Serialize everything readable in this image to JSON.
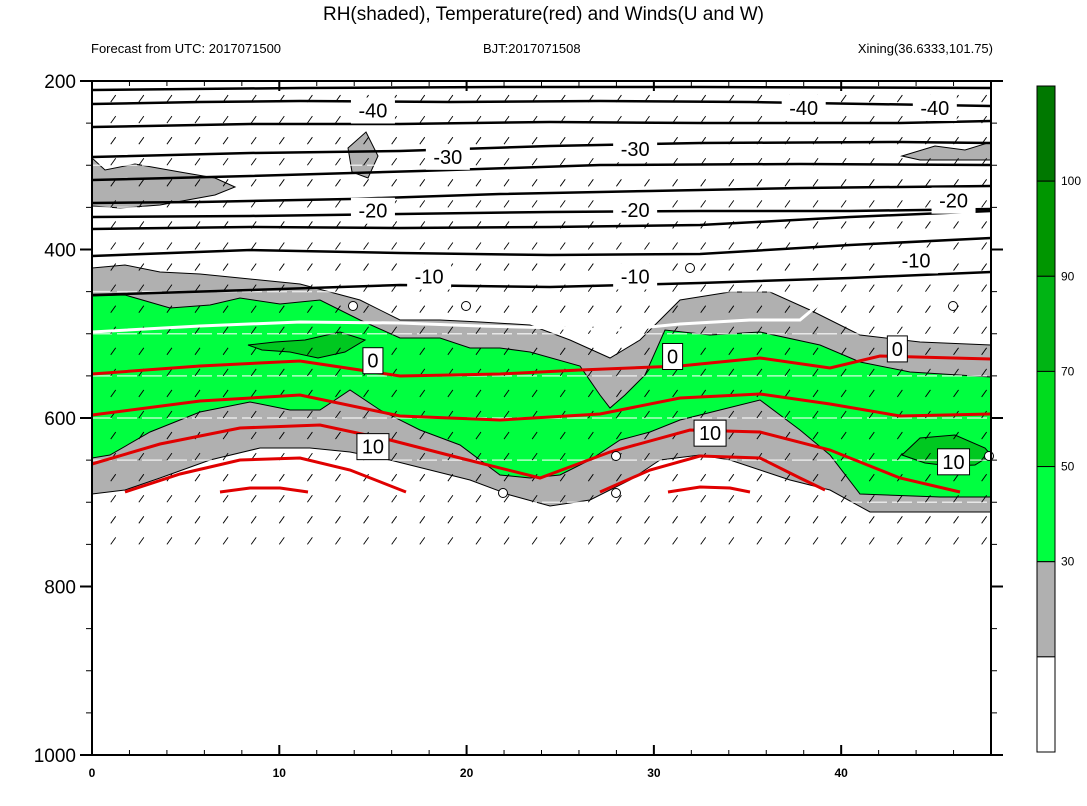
{
  "chart_data": {
    "type": "contour",
    "title": "RH(shaded), Temperature(red) and Winds(U and W)",
    "subtitle_left": "Forecast from UTC: 2017071500",
    "subtitle_center": "BJT:2017071508",
    "subtitle_right": "Xining(36.6333,101.75)",
    "xlim": [
      0,
      48
    ],
    "xticks": [
      0,
      10,
      20,
      30,
      40
    ],
    "xtick_labels": [
      "0",
      "10",
      "20",
      "30",
      "40"
    ],
    "ylim": [
      1000,
      200
    ],
    "yticks": [
      200,
      400,
      600,
      800,
      1000
    ],
    "ytick_labels": [
      "200",
      "400",
      "600",
      "800",
      "1000"
    ],
    "colorbar": {
      "levels": [
        "30",
        "50",
        "70",
        "90",
        "100"
      ],
      "colors": [
        "#ffffff",
        "#b0b0b0",
        "#00ff40",
        "#00dc1e",
        "#00b414",
        "#009600",
        "#007800"
      ]
    },
    "temperature_labels": [
      {
        "text": "-40",
        "x": 15,
        "p": 235
      },
      {
        "text": "-40",
        "x": 38,
        "p": 232
      },
      {
        "text": "-40",
        "x": 45,
        "p": 232
      },
      {
        "text": "-30",
        "x": 19,
        "p": 290
      },
      {
        "text": "-30",
        "x": 29,
        "p": 281
      },
      {
        "text": "-20",
        "x": 15,
        "p": 354
      },
      {
        "text": "-20",
        "x": 29,
        "p": 353
      },
      {
        "text": "-20",
        "x": 46,
        "p": 342
      },
      {
        "text": "-10",
        "x": 18,
        "p": 432
      },
      {
        "text": "-10",
        "x": 29,
        "p": 432
      },
      {
        "text": "-10",
        "x": 44,
        "p": 413
      },
      {
        "text": "0",
        "x": 15,
        "p": 532
      },
      {
        "text": "0",
        "x": 31,
        "p": 527
      },
      {
        "text": "0",
        "x": 43,
        "p": 518
      },
      {
        "text": "10",
        "x": 15,
        "p": 634
      },
      {
        "text": "10",
        "x": 33,
        "p": 618
      },
      {
        "text": "10",
        "x": 46,
        "p": 652
      }
    ]
  }
}
